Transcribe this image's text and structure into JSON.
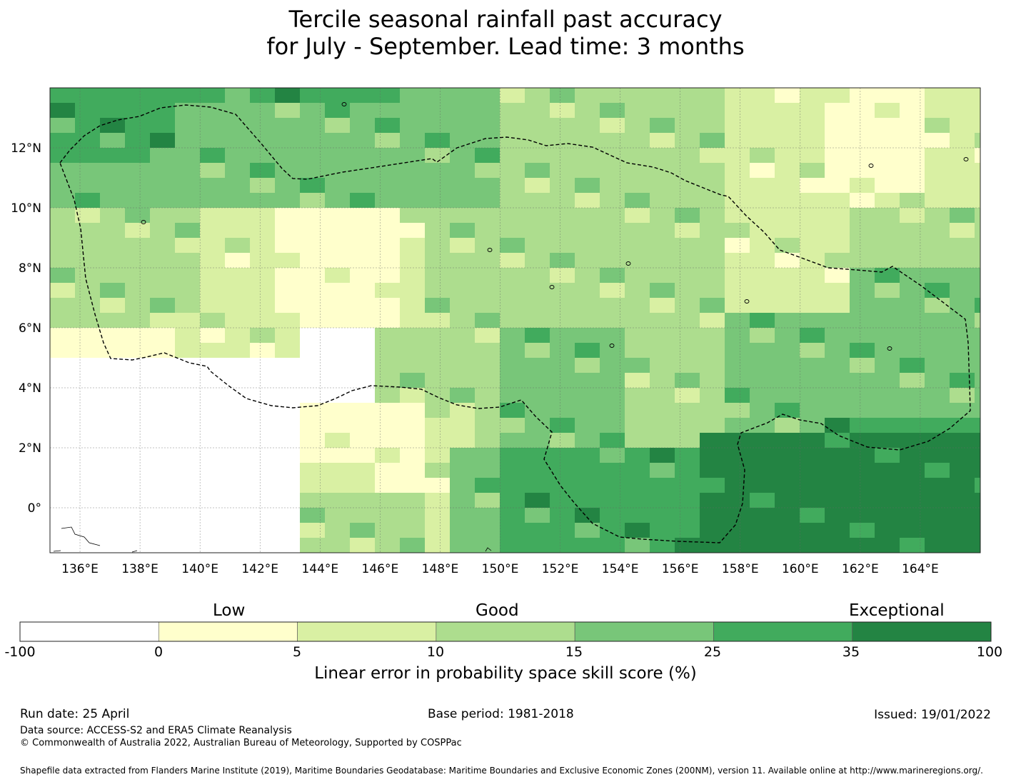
{
  "title_line1": "Tercile seasonal rainfall past accuracy",
  "title_line2": "for July - September. Lead time: 3 months",
  "map": {
    "lon_range": [
      135,
      166
    ],
    "lat_range": [
      -1.5,
      14
    ],
    "lon_tick_labels": [
      "136°E",
      "138°E",
      "140°E",
      "142°E",
      "144°E",
      "146°E",
      "148°E",
      "150°E",
      "152°E",
      "154°E",
      "156°E",
      "158°E",
      "160°E",
      "162°E",
      "164°E"
    ],
    "lat_tick_labels": [
      "12°N",
      "10°N",
      "8°N",
      "6°N",
      "4°N",
      "2°N",
      "0°"
    ],
    "region_outline": "dashed",
    "grid": true
  },
  "colorbar": {
    "categories": [
      "Low",
      "Good",
      "Exceptional"
    ],
    "boundaries": [
      "-100",
      "0",
      "5",
      "10",
      "15",
      "25",
      "35",
      "100"
    ],
    "colors": [
      "#ffffff",
      "#ffffcc",
      "#d9f0a3",
      "#addd8e",
      "#78c679",
      "#41ab5d",
      "#238443"
    ],
    "label": "Linear error in probability space skill score (%)"
  },
  "footer": {
    "run_date": "Run date: 25 April",
    "base_period": "Base period: 1981-2018",
    "issued": "Issued: 19/01/2022",
    "data_source": "Data source: ACCESS-S2 and ERA5 Climate Reanalysis",
    "copyright": "© Commonwealth of Australia 2022, Australian Bureau of Meteorology, Supported by COSPPac",
    "shapefile_note": "Shapefile data extracted from Flanders Marine Institute (2019), Maritime Boundaries Geodatabase: Maritime Boundaries and Exclusive Economic Zones (200NM), version 11. Available online at http://www.marineregions.org/."
  }
}
